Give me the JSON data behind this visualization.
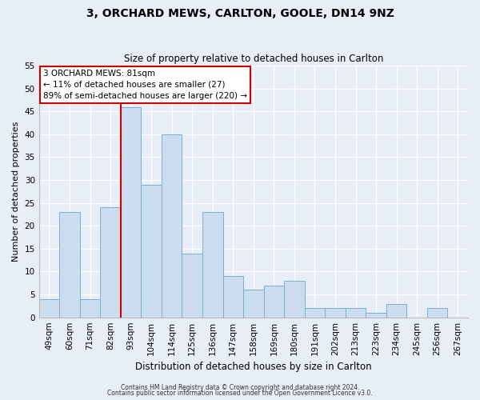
{
  "title": "3, ORCHARD MEWS, CARLTON, GOOLE, DN14 9NZ",
  "subtitle": "Size of property relative to detached houses in Carlton",
  "xlabel": "Distribution of detached houses by size in Carlton",
  "ylabel": "Number of detached properties",
  "bar_labels": [
    "49sqm",
    "60sqm",
    "71sqm",
    "82sqm",
    "93sqm",
    "104sqm",
    "114sqm",
    "125sqm",
    "136sqm",
    "147sqm",
    "158sqm",
    "169sqm",
    "180sqm",
    "191sqm",
    "202sqm",
    "213sqm",
    "223sqm",
    "234sqm",
    "245sqm",
    "256sqm",
    "267sqm"
  ],
  "bar_values": [
    4,
    23,
    4,
    24,
    46,
    29,
    40,
    14,
    23,
    9,
    6,
    7,
    8,
    2,
    2,
    2,
    1,
    3,
    0,
    2,
    0
  ],
  "bar_color": "#ccddf0",
  "bar_edge_color": "#7bafd4",
  "ylim": [
    0,
    55
  ],
  "yticks": [
    0,
    5,
    10,
    15,
    20,
    25,
    30,
    35,
    40,
    45,
    50,
    55
  ],
  "vline_x_index": 3,
  "vline_color": "#cc0000",
  "annotation_lines": [
    "3 ORCHARD MEWS: 81sqm",
    "← 11% of detached houses are smaller (27)",
    "89% of semi-detached houses are larger (220) →"
  ],
  "annotation_box_color": "#ffffff",
  "annotation_box_edge_color": "#cc0000",
  "footer1": "Contains HM Land Registry data © Crown copyright and database right 2024.",
  "footer2": "Contains public sector information licensed under the Open Government Licence v3.0.",
  "background_color": "#e8eef7",
  "grid_color": "#ffffff",
  "title_fontsize": 10,
  "subtitle_fontsize": 8.5,
  "tick_fontsize": 7.5,
  "ylabel_fontsize": 8,
  "xlabel_fontsize": 8.5
}
